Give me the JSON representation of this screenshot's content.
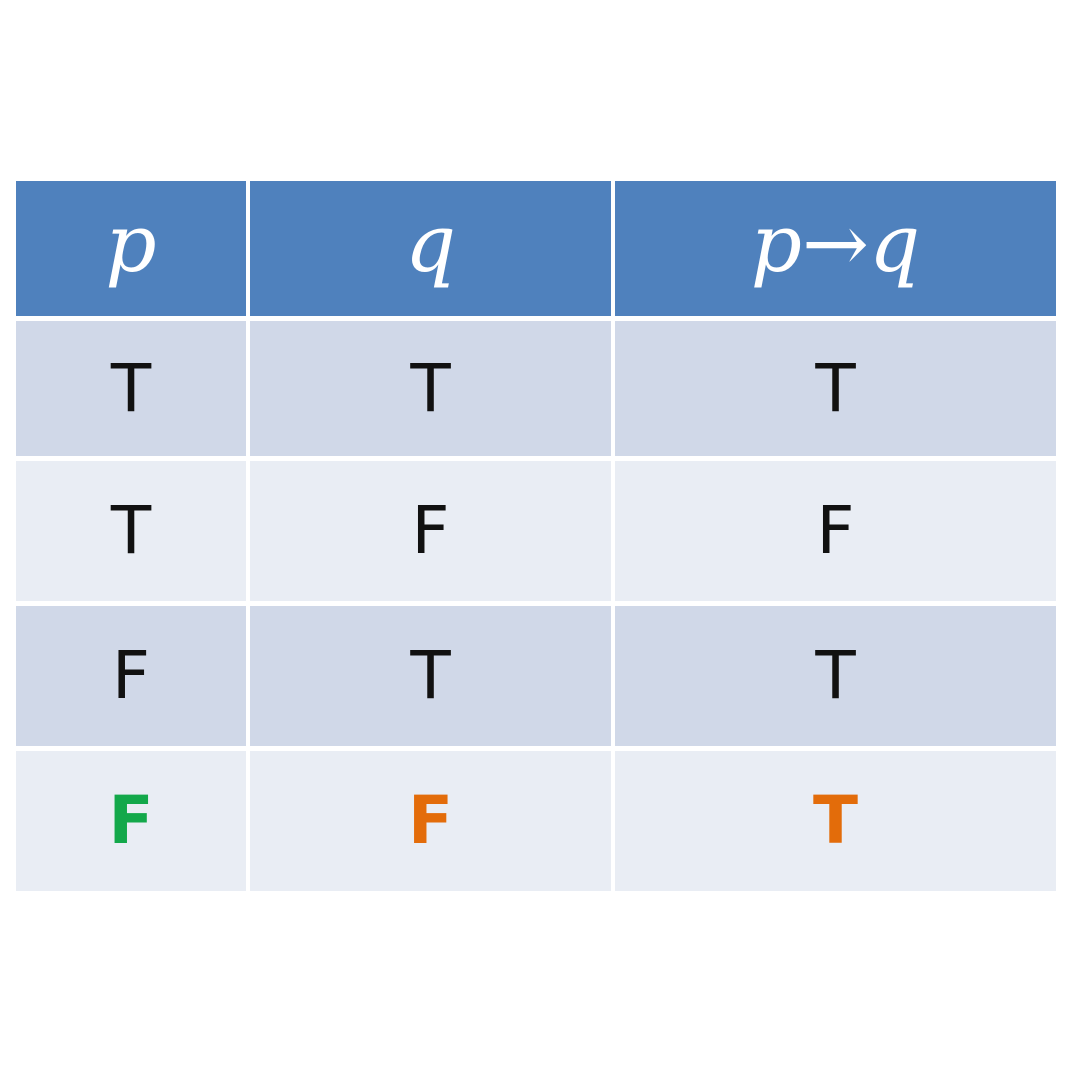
{
  "table": {
    "headers": [
      "p",
      "q",
      "p→q"
    ],
    "rows": [
      [
        "T",
        "T",
        "T"
      ],
      [
        "T",
        "F",
        "F"
      ],
      [
        "F",
        "T",
        "T"
      ],
      [
        "F",
        "F",
        "T"
      ]
    ]
  },
  "colors": {
    "header_bg": "#4f81bd",
    "row_dark_bg": "#d0d8e8",
    "row_light_bg": "#e9edf4",
    "text_default": "#111111",
    "highlight_green": "#13a84a",
    "highlight_orange": "#e36c0a"
  }
}
